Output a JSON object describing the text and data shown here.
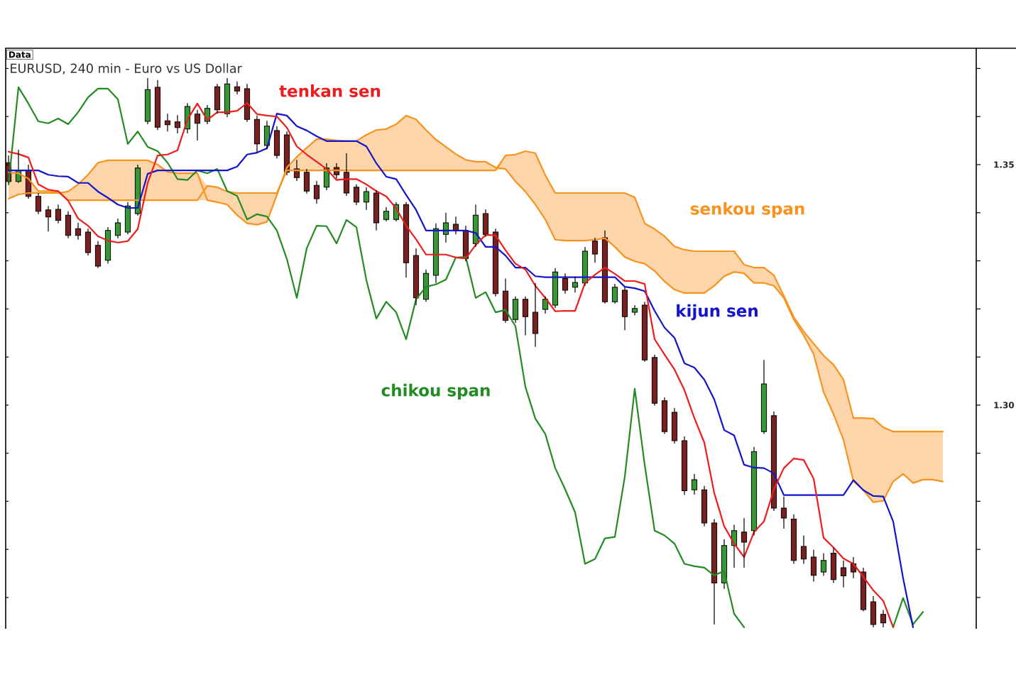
{
  "chart_data": {
    "type": "candlestick",
    "title": "EURUSD, 240 min - Euro vs US Dollar",
    "annotations": [
      "Data"
    ],
    "categories": [
      null,
      null,
      null,
      null,
      null,
      null,
      null,
      null,
      null,
      null,
      null,
      null,
      null,
      null,
      null,
      null,
      null,
      null,
      null,
      null,
      null,
      null,
      null,
      null,
      null,
      null,
      null,
      null,
      null,
      null,
      null,
      null,
      null,
      null,
      null,
      null,
      null,
      null,
      null,
      null,
      null,
      null,
      null,
      null,
      null,
      null,
      null,
      null,
      null,
      null,
      null,
      null,
      null,
      null,
      null,
      null,
      null,
      null,
      null,
      null,
      null,
      null,
      null,
      null,
      null,
      null,
      null,
      null,
      null,
      null,
      null,
      null,
      null,
      null,
      null,
      null,
      null,
      null,
      null,
      null,
      null,
      null,
      null,
      null,
      null,
      null,
      null,
      null,
      null,
      null,
      null,
      null,
      null,
      null,
      null
    ],
    "ohlc": [
      [
        1.3504,
        1.3519,
        1.3462,
        1.3465
      ],
      [
        1.3465,
        1.3531,
        1.3462,
        1.3488
      ],
      [
        1.3488,
        1.35,
        1.3429,
        1.3434
      ],
      [
        1.3434,
        1.3441,
        1.3397,
        1.3403
      ],
      [
        1.3406,
        1.3414,
        1.3361,
        1.3391
      ],
      [
        1.3407,
        1.3417,
        1.3378,
        1.3384
      ],
      [
        1.3395,
        1.3403,
        1.3347,
        1.3353
      ],
      [
        1.3367,
        1.3379,
        1.3344,
        1.3353
      ],
      [
        1.336,
        1.3367,
        1.3311,
        1.3317
      ],
      [
        1.3332,
        1.3341,
        1.3285,
        1.3289
      ],
      [
        1.3301,
        1.337,
        1.3294,
        1.3363
      ],
      [
        1.3353,
        1.3388,
        1.3347,
        1.3379
      ],
      [
        1.336,
        1.3422,
        1.3355,
        1.3414
      ],
      [
        1.3398,
        1.35,
        1.3394,
        1.3493
      ],
      [
        1.359,
        1.368,
        1.3584,
        1.3656
      ],
      [
        1.3661,
        1.3676,
        1.3572,
        1.3578
      ],
      [
        1.3591,
        1.3606,
        1.3569,
        1.3583
      ],
      [
        1.3589,
        1.3603,
        1.3565,
        1.3577
      ],
      [
        1.3574,
        1.3628,
        1.3565,
        1.3621
      ],
      [
        1.3605,
        1.3614,
        1.355,
        1.3586
      ],
      [
        1.359,
        1.3624,
        1.3584,
        1.3617
      ],
      [
        1.3662,
        1.3668,
        1.3606,
        1.3614
      ],
      [
        1.3606,
        1.368,
        1.3599,
        1.3668
      ],
      [
        1.3662,
        1.3673,
        1.3646,
        1.3653
      ],
      [
        1.3658,
        1.3668,
        1.3589,
        1.3594
      ],
      [
        1.3594,
        1.3602,
        1.3524,
        1.3543
      ],
      [
        1.354,
        1.3591,
        1.3532,
        1.358
      ],
      [
        1.3571,
        1.358,
        1.3513,
        1.3519
      ],
      [
        1.3562,
        1.3569,
        1.3478,
        1.3484
      ],
      [
        1.3491,
        1.351,
        1.3466,
        1.3473
      ],
      [
        1.3484,
        1.3491,
        1.344,
        1.3445
      ],
      [
        1.3457,
        1.3466,
        1.3419,
        1.3429
      ],
      [
        1.3453,
        1.3503,
        1.3447,
        1.3493
      ],
      [
        1.3494,
        1.3503,
        1.3471,
        1.3479
      ],
      [
        1.3484,
        1.3524,
        1.3435,
        1.3441
      ],
      [
        1.3453,
        1.3459,
        1.3416,
        1.3422
      ],
      [
        1.3422,
        1.3453,
        1.3406,
        1.3444
      ],
      [
        1.3441,
        1.3447,
        1.3363,
        1.3379
      ],
      [
        1.3386,
        1.3412,
        1.3382,
        1.3403
      ],
      [
        1.3386,
        1.3422,
        1.3382,
        1.3417
      ],
      [
        1.3417,
        1.3422,
        1.3265,
        1.3296
      ],
      [
        1.3311,
        1.3326,
        1.3208,
        1.3223
      ],
      [
        1.322,
        1.3282,
        1.3215,
        1.3274
      ],
      [
        1.327,
        1.3378,
        1.3254,
        1.3367
      ],
      [
        1.3355,
        1.34,
        1.3338,
        1.3379
      ],
      [
        1.3376,
        1.3392,
        1.3355,
        1.3363
      ],
      [
        1.3363,
        1.3373,
        1.3299,
        1.3305
      ],
      [
        1.3336,
        1.3417,
        1.3329,
        1.3395
      ],
      [
        1.3398,
        1.3407,
        1.335,
        1.3355
      ],
      [
        1.336,
        1.3367,
        1.3226,
        1.3232
      ],
      [
        1.3237,
        1.3263,
        1.3171,
        1.3176
      ],
      [
        1.3178,
        1.3226,
        1.3171,
        1.322
      ],
      [
        1.322,
        1.3226,
        1.3145,
        1.3184
      ],
      [
        1.3193,
        1.3254,
        1.3121,
        1.3149
      ],
      [
        1.3199,
        1.3226,
        1.319,
        1.322
      ],
      [
        1.3208,
        1.3285,
        1.3202,
        1.3277
      ],
      [
        1.3263,
        1.3274,
        1.3232,
        1.3239
      ],
      [
        1.3245,
        1.3267,
        1.3234,
        1.3255
      ],
      [
        1.3254,
        1.3329,
        1.3248,
        1.332
      ],
      [
        1.3341,
        1.3348,
        1.3296,
        1.3314
      ],
      [
        1.3348,
        1.3363,
        1.3211,
        1.3215
      ],
      [
        1.3215,
        1.3252,
        1.3211,
        1.3245
      ],
      [
        1.3239,
        1.3245,
        1.3156,
        1.3184
      ],
      [
        1.3193,
        1.3208,
        1.3187,
        1.3201
      ],
      [
        1.3208,
        1.3215,
        1.309,
        1.3094
      ],
      [
        1.3099,
        1.3105,
        1.2999,
        1.3004
      ],
      [
        1.3009,
        1.3016,
        1.294,
        1.2945
      ],
      [
        1.2985,
        1.2994,
        1.292,
        1.2926
      ],
      [
        1.2926,
        1.2935,
        1.2813,
        1.2822
      ],
      [
        1.2824,
        1.2857,
        1.2814,
        1.2845
      ],
      [
        1.2824,
        1.2832,
        1.2748,
        1.2755
      ],
      [
        1.2755,
        1.2763,
        1.2544,
        1.263
      ],
      [
        1.263,
        1.2721,
        1.2618,
        1.2708
      ],
      [
        1.2708,
        1.2751,
        1.2662,
        1.2739
      ],
      [
        1.2736,
        1.2765,
        1.2662,
        1.2715
      ],
      [
        1.2739,
        1.2913,
        1.2729,
        1.2903
      ],
      [
        1.2945,
        1.3094,
        1.294,
        1.3044
      ],
      [
        1.2978,
        1.2987,
        1.278,
        1.2786
      ],
      [
        1.2786,
        1.281,
        1.2743,
        1.2765
      ],
      [
        1.2763,
        1.2773,
        1.267,
        1.2677
      ],
      [
        1.2706,
        1.2729,
        1.267,
        1.268
      ],
      [
        1.2684,
        1.2699,
        1.2633,
        1.2646
      ],
      [
        1.2653,
        1.2692,
        1.2645,
        1.2677
      ],
      [
        1.2692,
        1.2704,
        1.263,
        1.2637
      ],
      [
        1.2662,
        1.2677,
        1.2621,
        1.2645
      ],
      [
        1.267,
        1.2684,
        1.264,
        1.2653
      ],
      [
        1.2653,
        1.2662,
        1.2571,
        1.2575
      ],
      [
        1.2591,
        1.2603,
        1.2538,
        1.2544
      ],
      [
        1.2565,
        1.2574,
        1.2538,
        1.2547
      ],
      null,
      null,
      null,
      null,
      null,
      null
    ],
    "colors": [
      "#7a1f1f",
      "#339933",
      "#7a1f1f",
      "#7a1f1f",
      "#7a1f1f",
      "#7a1f1f",
      "#7a1f1f",
      "#7a1f1f",
      "#7a1f1f",
      "#7a1f1f",
      "#339933",
      "#339933",
      "#339933",
      "#339933",
      "#339933",
      "#7a1f1f",
      "#7a1f1f",
      "#7a1f1f",
      "#339933",
      "#7a1f1f",
      "#339933",
      "#7a1f1f",
      "#339933",
      "#7a1f1f",
      "#7a1f1f",
      "#7a1f1f",
      "#339933",
      "#7a1f1f",
      "#7a1f1f",
      "#7a1f1f",
      "#7a1f1f",
      "#7a1f1f",
      "#339933",
      "#7a1f1f",
      "#7a1f1f",
      "#7a1f1f",
      "#339933",
      "#7a1f1f",
      "#339933",
      "#339933",
      "#7a1f1f",
      "#7a1f1f",
      "#339933",
      "#339933",
      "#339933",
      "#7a1f1f",
      "#7a1f1f",
      "#339933",
      "#7a1f1f",
      "#7a1f1f",
      "#7a1f1f",
      "#339933",
      "#7a1f1f",
      "#7a1f1f",
      "#339933",
      "#339933",
      "#7a1f1f",
      "#339933",
      "#339933",
      "#7a1f1f",
      "#7a1f1f",
      "#339933",
      "#7a1f1f",
      "#339933",
      "#7a1f1f",
      "#7a1f1f",
      "#7a1f1f",
      "#7a1f1f",
      "#7a1f1f",
      "#339933",
      "#7a1f1f",
      "#7a1f1f",
      "#339933",
      "#339933",
      "#7a1f1f",
      "#339933",
      "#339933",
      "#7a1f1f",
      "#7a1f1f",
      "#7a1f1f",
      "#7a1f1f",
      "#7a1f1f",
      "#339933",
      "#7a1f1f",
      "#7a1f1f",
      "#7a1f1f",
      "#7a1f1f",
      "#7a1f1f",
      "#7a1f1f",
      null,
      null,
      null,
      null,
      null,
      null
    ],
    "series": [
      {
        "name": "tenkan sen",
        "type": "line",
        "color": "#ee1c1c",
        "values": [
          1.3527,
          1.3522,
          1.3515,
          1.3459,
          1.3448,
          1.3445,
          1.3425,
          1.3388,
          1.3373,
          1.3351,
          1.3342,
          1.3338,
          1.3341,
          1.3366,
          1.3462,
          1.3519,
          1.3521,
          1.353,
          1.3594,
          1.3627,
          1.3593,
          1.3609,
          1.3609,
          1.3612,
          1.3628,
          1.3605,
          1.3602,
          1.36,
          1.3577,
          1.3538,
          1.3521,
          1.3506,
          1.3491,
          1.3468,
          1.347,
          1.347,
          1.3459,
          1.3445,
          1.3434,
          1.3409,
          1.3373,
          1.3345,
          1.3313,
          1.3313,
          1.3313,
          1.3307,
          1.3305,
          1.3333,
          1.3354,
          1.3353,
          1.3322,
          1.3294,
          1.3282,
          1.3248,
          1.3223,
          1.3195,
          1.3196,
          1.3196,
          1.3254,
          1.3271,
          1.3286,
          1.3273,
          1.3258,
          1.3258,
          1.3252,
          1.3137,
          1.3105,
          1.3074,
          1.3031,
          1.2973,
          1.2922,
          1.2817,
          1.2748,
          1.2712,
          1.2684,
          1.2736,
          1.2758,
          1.2825,
          1.2869,
          1.2889,
          1.2886,
          1.2847,
          1.2724,
          1.2704,
          1.2681,
          1.267,
          1.2643,
          1.2615,
          1.2593,
          1.2538,
          null,
          null,
          null,
          null,
          null
        ]
      },
      {
        "name": "kijun sen",
        "type": "line",
        "color": "#1414cc",
        "values": [
          1.3488,
          1.3488,
          1.3488,
          1.3488,
          1.3479,
          1.3476,
          1.3475,
          1.3462,
          1.3462,
          1.3444,
          1.3431,
          1.3417,
          1.341,
          1.341,
          1.3481,
          1.3488,
          1.3488,
          1.3488,
          1.3488,
          1.3488,
          1.3488,
          1.3488,
          1.3488,
          1.3496,
          1.3521,
          1.3525,
          1.3534,
          1.3606,
          1.3602,
          1.358,
          1.3571,
          1.3559,
          1.3549,
          1.3549,
          1.3549,
          1.3549,
          1.3538,
          1.3503,
          1.3475,
          1.347,
          1.3437,
          1.3406,
          1.3363,
          1.3363,
          1.3363,
          1.3363,
          1.3363,
          1.3358,
          1.3329,
          1.3329,
          1.3311,
          1.3286,
          1.3286,
          1.3268,
          1.3266,
          1.3266,
          1.3266,
          1.3266,
          1.3266,
          1.3266,
          1.3266,
          1.3266,
          1.3246,
          1.3243,
          1.3237,
          1.3196,
          1.3161,
          1.314,
          1.3087,
          1.3078,
          1.3053,
          1.3012,
          1.2948,
          1.2937,
          1.2876,
          1.287,
          1.2869,
          1.2858,
          1.2813,
          1.2813,
          1.2813,
          1.2813,
          1.2813,
          1.2813,
          1.2813,
          1.2844,
          1.2823,
          1.2811,
          1.281,
          1.2758,
          1.264,
          1.2538,
          null,
          null,
          null
        ]
      },
      {
        "name": "chikou span",
        "type": "line",
        "color": "#228b22",
        "values": [
          1.3459,
          1.3661,
          1.3627,
          1.359,
          1.3586,
          1.3596,
          1.3584,
          1.3609,
          1.364,
          1.3658,
          1.3658,
          1.3636,
          1.3543,
          1.3569,
          1.3537,
          1.3528,
          1.3504,
          1.347,
          1.3468,
          1.3488,
          1.3482,
          1.3491,
          1.3445,
          1.3435,
          1.3386,
          1.3397,
          1.3392,
          1.3363,
          1.3304,
          1.3223,
          1.3326,
          1.3373,
          1.3372,
          1.3336,
          1.3385,
          1.337,
          1.326,
          1.318,
          1.3215,
          1.3193,
          1.3137,
          1.322,
          1.3246,
          1.3251,
          1.3261,
          1.3307,
          1.3308,
          1.3223,
          1.3235,
          1.3193,
          1.3198,
          1.3164,
          1.3038,
          1.2972,
          1.294,
          1.2869,
          1.2825,
          1.2777,
          1.267,
          1.268,
          1.2723,
          1.2726,
          1.2851,
          1.3034,
          1.2876,
          1.2739,
          1.2729,
          1.2712,
          1.267,
          1.2665,
          1.2662,
          1.2646,
          1.2655,
          1.2566,
          1.2538,
          null,
          null,
          null,
          null,
          null,
          null,
          null,
          null,
          null,
          null,
          null,
          null,
          null,
          null,
          1.2538,
          1.2599,
          1.2544,
          1.257,
          null,
          null
        ]
      },
      {
        "name": "senkou span",
        "type": "line",
        "color": "#f7931e",
        "values": [
          1.3484,
          1.3482,
          1.3471,
          1.3445,
          1.3445,
          1.3443,
          1.3426,
          1.3426,
          1.3426,
          1.3426,
          1.3426,
          1.3426,
          1.3426,
          1.3426,
          1.3426,
          1.3426,
          1.3426,
          1.3426,
          1.3426,
          1.3426,
          1.3456,
          1.3453,
          1.3444,
          1.3441,
          1.3441,
          1.3441,
          1.3441,
          1.3441,
          1.3488,
          1.3488,
          1.3488,
          1.3488,
          1.3488,
          1.3488,
          1.3488,
          1.3488,
          1.3488,
          1.3488,
          1.3488,
          1.3488,
          1.3488,
          1.3488,
          1.3488,
          1.3488,
          1.3488,
          1.3488,
          1.3488,
          1.3488,
          1.3488,
          1.3488,
          1.3519,
          1.3521,
          1.3528,
          1.3524,
          1.3478,
          1.3441,
          1.3441,
          1.3441,
          1.3441,
          1.3441,
          1.3441,
          1.3441,
          1.3441,
          1.3432,
          1.3378,
          1.3366,
          1.3351,
          1.333,
          1.3323,
          1.332,
          1.332,
          1.332,
          1.332,
          1.332,
          1.3292,
          1.3286,
          1.3286,
          1.327,
          1.3227,
          1.3183,
          1.3153,
          1.3128,
          1.3103,
          1.3084,
          1.3053,
          1.2973,
          1.2973,
          1.2972,
          1.2954,
          1.2945,
          1.2945,
          1.2945,
          1.2945,
          1.2945,
          1.2945
        ],
        "lower": [
          1.3429,
          1.3438,
          1.3441,
          1.3441,
          1.3441,
          1.3441,
          1.3426,
          1.3426,
          1.3426,
          1.3426,
          1.3426,
          1.3426,
          1.3426,
          1.3426,
          1.3426,
          1.3426,
          1.3426,
          1.3426,
          1.3426,
          1.3426,
          1.3426,
          1.3422,
          1.3417,
          1.3395,
          1.3378,
          1.3375,
          1.3381,
          1.3437,
          1.3488,
          1.3488,
          1.3488,
          1.3488,
          1.3488,
          1.3488,
          1.3488,
          1.3488,
          1.3488,
          1.3488,
          1.3488,
          1.3488,
          1.3488,
          1.3488,
          1.3488,
          1.3488,
          1.3488,
          1.3488,
          1.3488,
          1.3488,
          1.3488,
          1.3488,
          1.3491,
          1.3465,
          1.3444,
          1.3417,
          1.3386,
          1.3344,
          1.3342,
          1.3342,
          1.3342,
          1.3344,
          1.3347,
          1.3329,
          1.3308,
          1.3299,
          1.3294,
          1.3279,
          1.3257,
          1.324,
          1.3233,
          1.3233,
          1.3233,
          1.3248,
          1.3268,
          1.3277,
          1.3274,
          1.3254,
          1.3254,
          1.3248,
          1.3223,
          1.3178,
          1.3145,
          1.3106,
          1.3027,
          1.2981,
          1.2928,
          1.2842,
          1.2823,
          1.2798,
          1.2801,
          1.2841,
          1.2857,
          1.2838,
          1.2845,
          1.2845,
          1.2841
        ],
        "upper": [
          1.3484,
          1.3482,
          1.3471,
          1.3445,
          1.3445,
          1.3443,
          1.3444,
          1.3459,
          1.3479,
          1.3504,
          1.3509,
          1.3509,
          1.3509,
          1.3509,
          1.3509,
          1.35,
          1.3485,
          1.3482,
          1.3482,
          1.3482,
          1.3456,
          1.3453,
          1.3444,
          1.3441,
          1.3441,
          1.3441,
          1.3441,
          1.3441,
          1.3494,
          1.3516,
          1.3535,
          1.3553,
          1.3553,
          1.355,
          1.3549,
          1.3549,
          1.3562,
          1.3572,
          1.3574,
          1.3584,
          1.3602,
          1.3594,
          1.3572,
          1.3552,
          1.3537,
          1.3522,
          1.351,
          1.3506,
          1.3506,
          1.3494,
          1.3519,
          1.3521,
          1.3528,
          1.3524,
          1.3478,
          1.3441,
          1.3441,
          1.3441,
          1.3441,
          1.3441,
          1.3441,
          1.3441,
          1.3441,
          1.3432,
          1.3378,
          1.3366,
          1.3351,
          1.333,
          1.3323,
          1.332,
          1.332,
          1.332,
          1.332,
          1.332,
          1.3292,
          1.3286,
          1.3286,
          1.327,
          1.3227,
          1.3183,
          1.3153,
          1.3128,
          1.3103,
          1.3084,
          1.3053,
          1.2973,
          1.2973,
          1.2972,
          1.2954,
          1.2945,
          1.2945,
          1.2945,
          1.2945,
          1.2945,
          1.2945
        ]
      },
      {
        "type": "line",
        "color": "#f7931e",
        "values": [
          1.3429,
          1.3438,
          1.3441,
          1.3441,
          1.3441,
          1.3441,
          1.3444,
          1.3459,
          1.3479,
          1.3504,
          1.3509,
          1.3509,
          1.3509,
          1.3509,
          1.3509,
          1.35,
          1.3485,
          1.3482,
          1.3482,
          1.3482,
          1.3426,
          1.3422,
          1.3417,
          1.3395,
          1.3378,
          1.3375,
          1.3381,
          1.3437,
          1.3494,
          1.3516,
          1.3535,
          1.3553,
          1.3553,
          1.355,
          1.3549,
          1.3549,
          1.3562,
          1.3572,
          1.3574,
          1.3584,
          1.3602,
          1.3594,
          1.3572,
          1.3552,
          1.3537,
          1.3522,
          1.351,
          1.3506,
          1.3506,
          1.3494,
          1.3491,
          1.3465,
          1.3444,
          1.3417,
          1.3386,
          1.3344,
          1.3342,
          1.3342,
          1.3342,
          1.3344,
          1.3347,
          1.3329,
          1.3308,
          1.3299,
          1.3294,
          1.3279,
          1.3257,
          1.324,
          1.3233,
          1.3233,
          1.3233,
          1.3248,
          1.3268,
          1.3277,
          1.3274,
          1.3254,
          1.3254,
          1.3248,
          1.3223,
          1.3178,
          1.3145,
          1.3106,
          1.3027,
          1.2981,
          1.2928,
          1.2842,
          1.2823,
          1.2798,
          1.2801,
          1.2841,
          1.2857,
          1.2838,
          1.2845,
          1.2845,
          1.2841
        ]
      }
    ],
    "ylim": [
      1.2535,
      1.3742
    ],
    "yticks": [
      {
        "value": 1.26,
        "label": null
      },
      {
        "value": 1.27,
        "label": null
      },
      {
        "value": 1.28,
        "label": null
      },
      {
        "value": 1.29,
        "label": null
      },
      {
        "value": 1.3,
        "label": "1.30"
      },
      {
        "value": 1.31,
        "label": null
      },
      {
        "value": 1.32,
        "label": null
      },
      {
        "value": 1.33,
        "label": null
      },
      {
        "value": 1.34,
        "label": null
      },
      {
        "value": 1.35,
        "label": "1.35"
      },
      {
        "value": 1.36,
        "label": null
      },
      {
        "value": 1.37,
        "label": null
      }
    ],
    "tick_labels": "y"
  }
}
